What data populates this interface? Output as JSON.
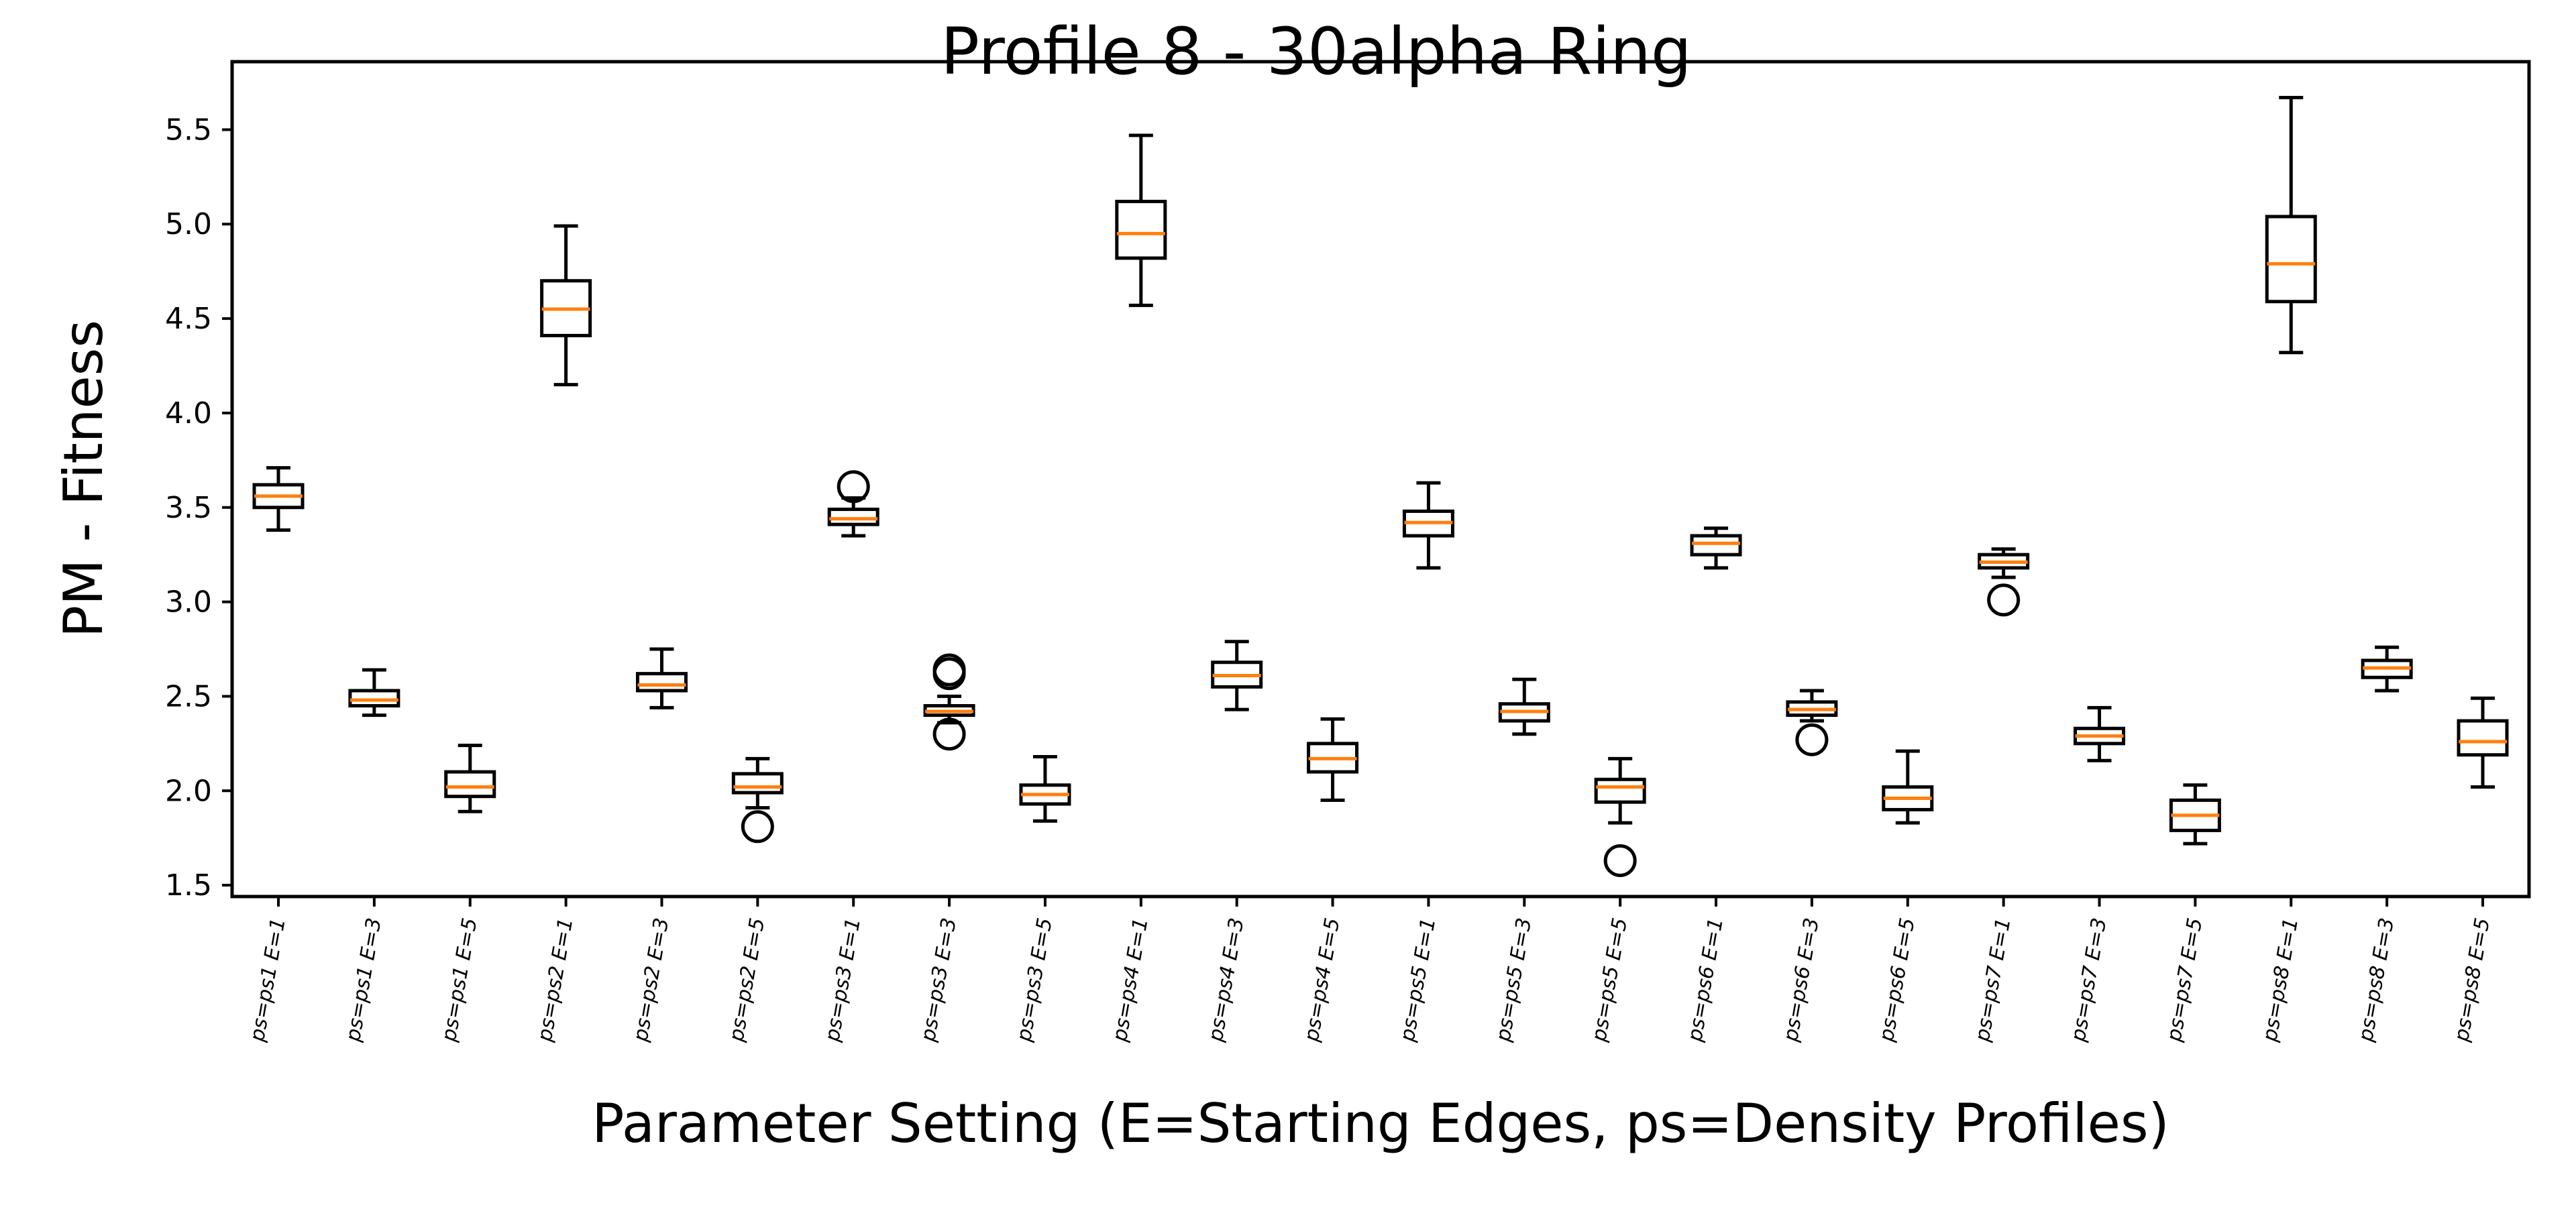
{
  "chart_data": {
    "type": "boxplot",
    "title": "Profile 8 - 30alpha Ring",
    "xlabel": "Parameter Setting (E=Starting Edges, ps=Density Profiles)",
    "ylabel": "PM - Fitness",
    "ylim": [
      1.44,
      5.86
    ],
    "yticks": [
      "1.5",
      "2.0",
      "2.5",
      "3.0",
      "3.5",
      "4.0",
      "4.5",
      "5.0",
      "5.5"
    ],
    "grid": false,
    "legend": "none",
    "colors": {
      "box": "#000000",
      "median": "#ff7f0e",
      "outlier": "#000000"
    },
    "categories": [
      "ps=ps1 E=1",
      "ps=ps1 E=3",
      "ps=ps1 E=5",
      "ps=ps2 E=1",
      "ps=ps2 E=3",
      "ps=ps2 E=5",
      "ps=ps3 E=1",
      "ps=ps3 E=3",
      "ps=ps3 E=5",
      "ps=ps4 E=1",
      "ps=ps4 E=3",
      "ps=ps4 E=5",
      "ps=ps5 E=1",
      "ps=ps5 E=3",
      "ps=ps5 E=5",
      "ps=ps6 E=1",
      "ps=ps6 E=3",
      "ps=ps6 E=5",
      "ps=ps7 E=1",
      "ps=ps7 E=3",
      "ps=ps7 E=5",
      "ps=ps8 E=1",
      "ps=ps8 E=3",
      "ps=ps8 E=5"
    ],
    "boxes": [
      {
        "whislo": 3.38,
        "q1": 3.5,
        "med": 3.56,
        "q3": 3.62,
        "whishi": 3.71,
        "fliers": []
      },
      {
        "whislo": 2.4,
        "q1": 2.45,
        "med": 2.48,
        "q3": 2.53,
        "whishi": 2.64,
        "fliers": []
      },
      {
        "whislo": 1.89,
        "q1": 1.97,
        "med": 2.02,
        "q3": 2.1,
        "whishi": 2.24,
        "fliers": []
      },
      {
        "whislo": 4.15,
        "q1": 4.41,
        "med": 4.55,
        "q3": 4.7,
        "whishi": 4.99,
        "fliers": []
      },
      {
        "whislo": 2.44,
        "q1": 2.53,
        "med": 2.56,
        "q3": 2.62,
        "whishi": 2.75,
        "fliers": []
      },
      {
        "whislo": 1.91,
        "q1": 1.99,
        "med": 2.02,
        "q3": 2.09,
        "whishi": 2.17,
        "fliers": [
          1.81
        ]
      },
      {
        "whislo": 3.35,
        "q1": 3.41,
        "med": 3.44,
        "q3": 3.49,
        "whishi": 3.55,
        "fliers": [
          3.61
        ]
      },
      {
        "whislo": 2.36,
        "q1": 2.4,
        "med": 2.42,
        "q3": 2.45,
        "whishi": 2.5,
        "fliers": [
          2.62,
          2.64,
          2.3
        ]
      },
      {
        "whislo": 1.84,
        "q1": 1.93,
        "med": 1.98,
        "q3": 2.03,
        "whishi": 2.18,
        "fliers": []
      },
      {
        "whislo": 4.57,
        "q1": 4.82,
        "med": 4.95,
        "q3": 5.12,
        "whishi": 5.47,
        "fliers": []
      },
      {
        "whislo": 2.43,
        "q1": 2.55,
        "med": 2.61,
        "q3": 2.68,
        "whishi": 2.79,
        "fliers": []
      },
      {
        "whislo": 1.95,
        "q1": 2.1,
        "med": 2.17,
        "q3": 2.25,
        "whishi": 2.38,
        "fliers": []
      },
      {
        "whislo": 3.18,
        "q1": 3.35,
        "med": 3.42,
        "q3": 3.48,
        "whishi": 3.63,
        "fliers": []
      },
      {
        "whislo": 2.3,
        "q1": 2.37,
        "med": 2.42,
        "q3": 2.46,
        "whishi": 2.59,
        "fliers": []
      },
      {
        "whislo": 1.83,
        "q1": 1.94,
        "med": 2.02,
        "q3": 2.06,
        "whishi": 2.17,
        "fliers": [
          1.63
        ]
      },
      {
        "whislo": 3.18,
        "q1": 3.25,
        "med": 3.31,
        "q3": 3.35,
        "whishi": 3.39,
        "fliers": []
      },
      {
        "whislo": 2.37,
        "q1": 2.4,
        "med": 2.43,
        "q3": 2.47,
        "whishi": 2.53,
        "fliers": [
          2.27
        ]
      },
      {
        "whislo": 1.83,
        "q1": 1.9,
        "med": 1.96,
        "q3": 2.02,
        "whishi": 2.21,
        "fliers": []
      },
      {
        "whislo": 3.13,
        "q1": 3.18,
        "med": 3.21,
        "q3": 3.25,
        "whishi": 3.28,
        "fliers": [
          3.01
        ]
      },
      {
        "whislo": 2.16,
        "q1": 2.25,
        "med": 2.29,
        "q3": 2.33,
        "whishi": 2.44,
        "fliers": []
      },
      {
        "whislo": 1.72,
        "q1": 1.79,
        "med": 1.87,
        "q3": 1.95,
        "whishi": 2.03,
        "fliers": []
      },
      {
        "whislo": 4.32,
        "q1": 4.59,
        "med": 4.79,
        "q3": 5.04,
        "whishi": 5.67,
        "fliers": []
      },
      {
        "whislo": 2.53,
        "q1": 2.6,
        "med": 2.65,
        "q3": 2.69,
        "whishi": 2.76,
        "fliers": []
      },
      {
        "whislo": 2.02,
        "q1": 2.19,
        "med": 2.26,
        "q3": 2.37,
        "whishi": 2.49,
        "fliers": []
      }
    ]
  }
}
